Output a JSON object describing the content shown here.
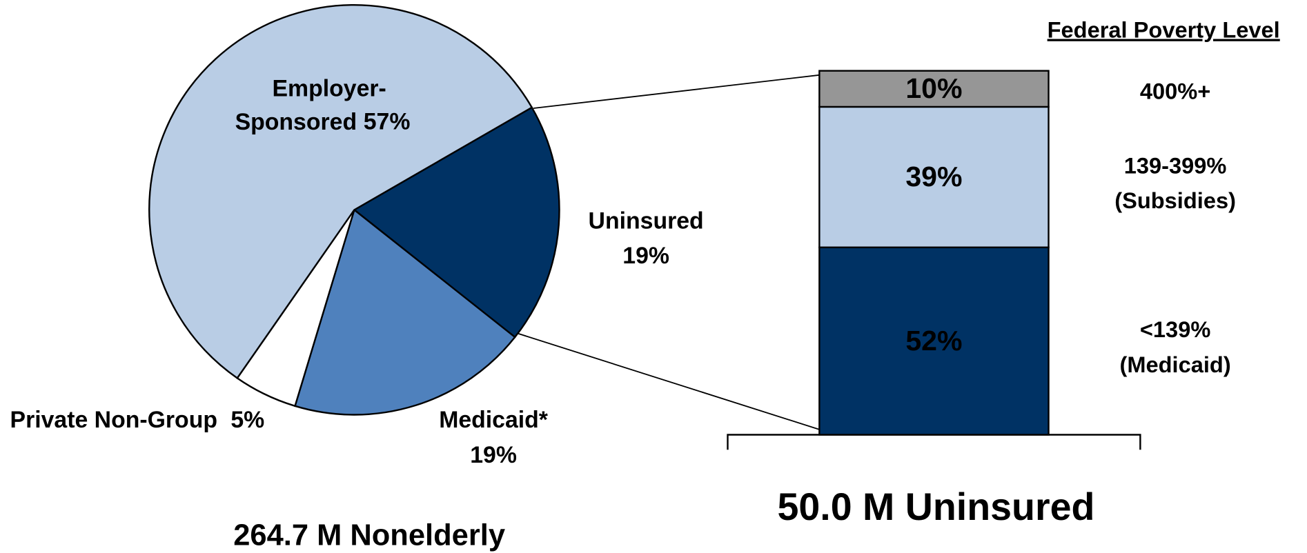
{
  "chart_data": [
    {
      "type": "pie",
      "title": "264.7 M Nonelderly",
      "categories": [
        "Employer-Sponsored",
        "Uninsured",
        "Medicaid*",
        "Private Non-Group"
      ],
      "values": [
        57,
        19,
        19,
        5
      ],
      "value_labels": [
        "57%",
        "19%",
        "19%",
        "5%"
      ],
      "colors": [
        "#b9cde5",
        "#003264",
        "#4f81bd",
        "#ffffff"
      ]
    },
    {
      "type": "stacked-bar",
      "title": "50.0 M Uninsured",
      "legend_title": "Federal Poverty Level",
      "series": [
        {
          "name": "<139% (Medicaid)",
          "color": "#003264",
          "values": [
            52
          ],
          "value_labels": [
            "52%"
          ]
        },
        {
          "name": "139-399% (Subsidies)",
          "color": "#b9cde5",
          "values": [
            39
          ],
          "value_labels": [
            "39%"
          ]
        },
        {
          "name": "400%+",
          "color": "#969696",
          "values": [
            10
          ],
          "value_labels": [
            "10%"
          ]
        }
      ]
    }
  ]
}
